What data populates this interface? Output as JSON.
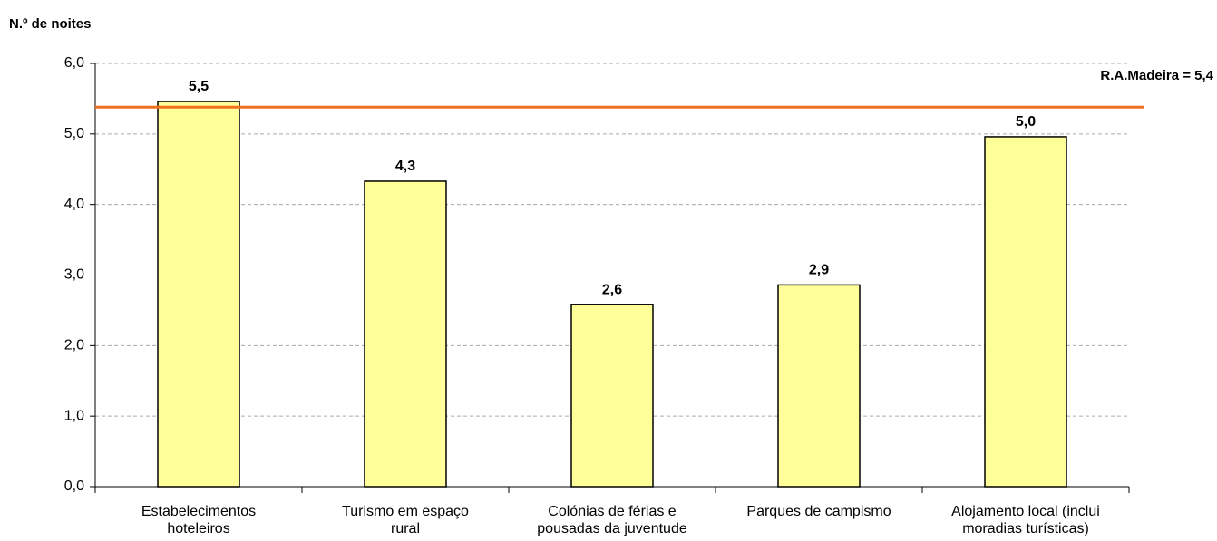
{
  "chart_data": {
    "type": "bar",
    "y_axis_label": "N.º de noites",
    "categories": [
      [
        "Estabelecimentos",
        "hoteleiros"
      ],
      [
        "Turismo em espaço",
        "rural"
      ],
      [
        "Colónias de férias e",
        "pousadas da juventude"
      ],
      [
        "Parques de campismo"
      ],
      [
        "Alojamento local (inclui",
        "moradias turísticas)"
      ]
    ],
    "values": [
      5.46,
      4.33,
      2.58,
      2.86,
      4.96
    ],
    "value_labels": [
      "5,5",
      "4,3",
      "2,6",
      "2,9",
      "5,0"
    ],
    "color": "#ffff99",
    "ylim": [
      0,
      6
    ],
    "yticks": [
      {
        "value": 0,
        "label": "0,0"
      },
      {
        "value": 1,
        "label": "1,0"
      },
      {
        "value": 2,
        "label": "2,0"
      },
      {
        "value": 3,
        "label": "3,0"
      },
      {
        "value": 4,
        "label": "4,0"
      },
      {
        "value": 5,
        "label": "5,0"
      },
      {
        "value": 6,
        "label": "6,0"
      }
    ],
    "grid": true,
    "reference_line": {
      "value": 5.38,
      "label": "R.A.Madeira = 5,4",
      "color": "#f07020"
    }
  }
}
